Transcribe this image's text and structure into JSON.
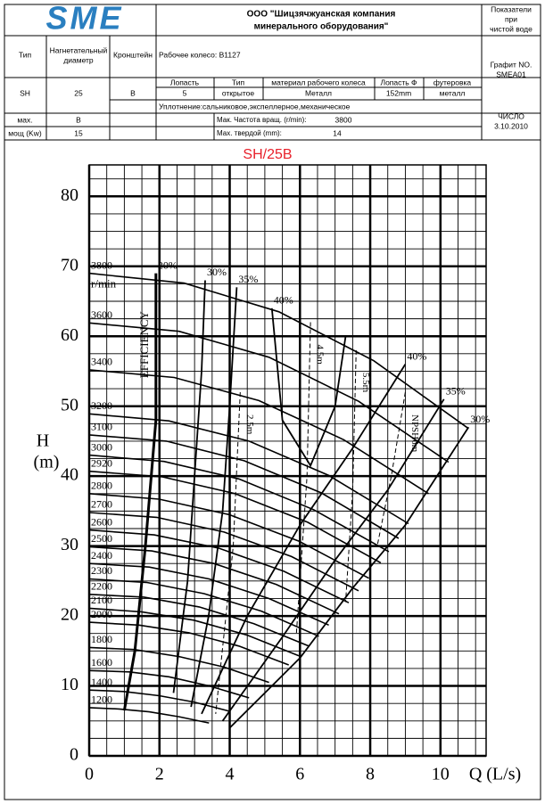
{
  "header": {
    "logo": "SME",
    "company": [
      "ООО \"Шицзячжуанская компания",
      "минерального оборудования\""
    ],
    "note": [
      "Показатели",
      "при",
      "чистой воде"
    ],
    "row2": {
      "type": "Тип",
      "diameter": [
        "Нагнетательный",
        "диаметр"
      ],
      "bracket": "Кронштейн",
      "impeller": "Рабочее колесо: B1127",
      "graph": [
        "Графит NO.",
        "SMEA01"
      ]
    },
    "row3": {
      "heads": [
        "Лопасть",
        "Тип",
        "материал рабочего колеса",
        "Лопасть Ф",
        "футеровка"
      ],
      "type": "SH",
      "diameter": "25",
      "bracket": "B",
      "vals": [
        "5",
        "открытое",
        "Металл",
        "152mm",
        "металл"
      ],
      "seal": "Уплотнение:сальниковое,экспеллерное,механическое"
    },
    "row4": {
      "max": "мах.",
      "max_val": "B",
      "speed_label": "Мак. Частота вращ. (r/min):",
      "speed": "3800",
      "power": "мощ (Kw)",
      "power_val": "15",
      "solid_label": "Мах. твердой (mm):",
      "solid": "14",
      "date": [
        "ЧИСЛО",
        "3.10.2010"
      ]
    }
  },
  "chart_data": {
    "type": "line",
    "title": "SH/25B",
    "xlabel": "Q (L/s)",
    "ylabel": [
      "H",
      "(m)"
    ],
    "unit_label": "r/min",
    "efficiency_label": "EFFICIENCY",
    "title_color": "#e8202a",
    "color": "#000000",
    "xlim": [
      0,
      11.3
    ],
    "ylim": [
      0,
      84.5
    ],
    "xticks": [
      0,
      2,
      4,
      6,
      8,
      10
    ],
    "yticks": [
      0,
      10,
      20,
      30,
      40,
      50,
      60,
      70,
      80
    ],
    "xminorticks": [
      0.5,
      1,
      1.5,
      2.5,
      3,
      3.5,
      4.5,
      5,
      5.5,
      6.5,
      7,
      7.5,
      8.5,
      9,
      9.5,
      10.5,
      11
    ],
    "yminorticks": [
      2.5,
      5,
      7.5,
      12.5,
      15,
      17.5,
      22.5,
      25,
      27.5,
      32.5,
      35,
      37.5,
      42.5,
      45,
      47.5,
      52.5,
      55,
      57.5,
      62.5,
      65,
      67.5,
      72.5,
      75,
      77.5,
      82.5
    ],
    "grid": true,
    "series": [
      {
        "name": "3800",
        "x": [
          0,
          2.7,
          5.4,
          8.1,
          10.8
        ],
        "values": [
          69,
          67.6,
          63.5,
          56.5,
          46.8
        ]
      },
      {
        "name": "3600",
        "x": [
          0,
          2.56,
          5.12,
          7.67,
          10.23
        ],
        "values": [
          61.9,
          60.7,
          57.0,
          50.7,
          42.0
        ]
      },
      {
        "name": "3400",
        "x": [
          0,
          2.42,
          4.83,
          7.25,
          9.66
        ],
        "values": [
          55.2,
          54.1,
          50.8,
          45.2,
          37.5
        ]
      },
      {
        "name": "3200",
        "x": [
          0,
          2.27,
          4.55,
          6.82,
          9.09
        ],
        "values": [
          48.9,
          47.9,
          45.0,
          40.1,
          33.2
        ]
      },
      {
        "name": "3100",
        "x": [
          0,
          2.2,
          4.41,
          6.61,
          8.81
        ],
        "values": [
          45.9,
          45.0,
          42.2,
          37.6,
          31.1
        ]
      },
      {
        "name": "3000",
        "x": [
          0,
          2.13,
          4.26,
          6.39,
          8.53
        ],
        "values": [
          43.0,
          42.1,
          39.6,
          35.2,
          29.2
        ]
      },
      {
        "name": "2920",
        "x": [
          0,
          2.07,
          4.15,
          6.22,
          8.3
        ],
        "values": [
          40.7,
          39.9,
          37.5,
          33.4,
          27.6
        ]
      },
      {
        "name": "2800",
        "x": [
          0,
          1.99,
          3.98,
          5.97,
          7.96
        ],
        "values": [
          37.5,
          36.7,
          34.5,
          30.7,
          25.4
        ]
      },
      {
        "name": "2700",
        "x": [
          0,
          1.92,
          3.84,
          5.76,
          7.67
        ],
        "values": [
          34.8,
          34.1,
          32.0,
          28.5,
          23.6
        ]
      },
      {
        "name": "2600",
        "x": [
          0,
          1.85,
          3.69,
          5.54,
          7.39
        ],
        "values": [
          32.3,
          31.6,
          29.7,
          26.4,
          21.9
        ]
      },
      {
        "name": "2500",
        "x": [
          0,
          1.78,
          3.55,
          5.33,
          7.11
        ],
        "values": [
          29.9,
          29.3,
          27.5,
          24.5,
          20.3
        ]
      },
      {
        "name": "2400",
        "x": [
          0,
          1.71,
          3.41,
          5.12,
          6.82
        ],
        "values": [
          27.5,
          27.0,
          25.3,
          22.5,
          18.7
        ]
      },
      {
        "name": "2300",
        "x": [
          0,
          1.63,
          3.27,
          4.9,
          6.54
        ],
        "values": [
          25.3,
          24.8,
          23.2,
          20.7,
          17.1
        ]
      },
      {
        "name": "2200",
        "x": [
          0,
          1.56,
          3.13,
          4.69,
          6.25
        ],
        "values": [
          23.1,
          22.7,
          21.3,
          18.9,
          15.7
        ]
      },
      {
        "name": "2100",
        "x": [
          0,
          1.49,
          2.98,
          4.48,
          5.97
        ],
        "values": [
          21.1,
          20.6,
          19.4,
          17.3,
          14.3
        ]
      },
      {
        "name": "2000",
        "x": [
          0,
          1.42,
          2.84,
          4.26,
          5.68
        ],
        "values": [
          19.1,
          18.7,
          17.6,
          15.7,
          13.0
        ]
      },
      {
        "name": "1800",
        "x": [
          0,
          1.28,
          2.56,
          3.84,
          5.12
        ],
        "values": [
          15.5,
          15.2,
          14.2,
          12.7,
          10.5
        ]
      },
      {
        "name": "1600",
        "x": [
          0,
          1.14,
          2.27,
          3.41,
          4.55
        ],
        "values": [
          12.2,
          12.0,
          11.3,
          10.0,
          8.3
        ]
      },
      {
        "name": "1400",
        "x": [
          0,
          0.99,
          1.99,
          2.98,
          3.98
        ],
        "values": [
          9.4,
          9.2,
          8.6,
          7.7,
          6.4
        ]
      },
      {
        "name": "1200",
        "x": [
          0,
          0.85,
          1.71,
          2.56,
          3.41
        ],
        "values": [
          6.9,
          6.7,
          6.3,
          5.6,
          4.7
        ]
      }
    ],
    "efficiency": [
      {
        "name": "20%",
        "x": [
          1.9,
          1.9,
          1.6,
          1.3,
          1.0
        ],
        "values": [
          69,
          48,
          30,
          15,
          6.5
        ]
      },
      {
        "name": "30%",
        "x": [
          3.3,
          3.2,
          3.0,
          2.8,
          2.4
        ],
        "values": [
          68,
          55,
          40,
          25,
          9
        ]
      },
      {
        "name": "35%",
        "x": [
          4.2,
          4.0,
          3.8,
          3.4,
          2.9
        ],
        "values": [
          67,
          50,
          35,
          20,
          7
        ]
      },
      {
        "name": "40%",
        "x": [
          5.2,
          5.5,
          6.3,
          7.0,
          7.3
        ],
        "values": [
          64,
          48,
          41.5,
          50,
          60
        ]
      },
      {
        "name": "40%",
        "x": [
          9.0,
          7.5,
          6.0,
          4.5,
          3.2
        ],
        "values": [
          56,
          44,
          33,
          20,
          6
        ]
      },
      {
        "name": "35%",
        "x": [
          10.1,
          8.5,
          7.0,
          5.5,
          3.8
        ],
        "values": [
          51,
          38,
          28,
          17,
          5
        ]
      },
      {
        "name": "30%",
        "x": [
          10.8,
          9.0,
          7.5,
          6.0,
          4.0
        ],
        "values": [
          47,
          33,
          24,
          14,
          4
        ]
      }
    ],
    "npsh": [
      {
        "name": "2.5m",
        "x": [
          4.3,
          4.1,
          3.6
        ],
        "values": [
          52,
          30,
          6
        ]
      },
      {
        "name": "4.5m",
        "x": [
          6.3,
          6.2,
          5.9
        ],
        "values": [
          62,
          40,
          17.5
        ]
      },
      {
        "name": "5.5m",
        "x": [
          7.6,
          7.5,
          7.3
        ],
        "values": [
          58,
          38,
          22
        ]
      },
      {
        "name": "NPSH6m",
        "x": [
          9.0,
          8.6,
          8.2
        ],
        "values": [
          52,
          40,
          30
        ]
      }
    ]
  }
}
